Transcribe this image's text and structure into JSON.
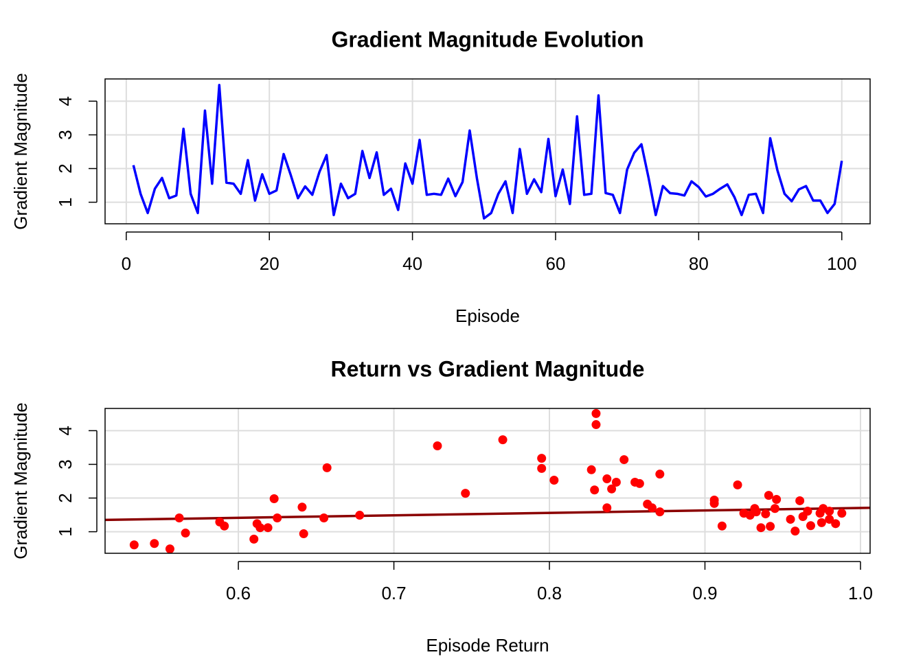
{
  "chart_data": [
    {
      "type": "line",
      "title": "Gradient Magnitude Evolution",
      "x_label": "Episode",
      "y_label": "Gradient Magnitude",
      "color": "#0000ff",
      "grid": true,
      "x": [
        1,
        2,
        3,
        4,
        5,
        6,
        7,
        8,
        9,
        10,
        11,
        12,
        13,
        14,
        15,
        16,
        17,
        18,
        19,
        20,
        21,
        22,
        23,
        24,
        25,
        26,
        27,
        28,
        29,
        30,
        31,
        32,
        33,
        34,
        35,
        36,
        37,
        38,
        39,
        40,
        41,
        42,
        43,
        44,
        45,
        46,
        47,
        48,
        49,
        50,
        51,
        52,
        53,
        54,
        55,
        56,
        57,
        58,
        59,
        60,
        61,
        62,
        63,
        64,
        65,
        66,
        67,
        68,
        69,
        70,
        71,
        72,
        73,
        74,
        75,
        76,
        77,
        78,
        79,
        80,
        81,
        82,
        83,
        84,
        85,
        86,
        87,
        88,
        89,
        90,
        91,
        92,
        93,
        94,
        95,
        96,
        97,
        98,
        99,
        100
      ],
      "values": [
        2.1,
        1.25,
        0.68,
        1.4,
        1.72,
        1.12,
        1.2,
        3.18,
        1.25,
        0.68,
        3.72,
        1.55,
        4.48,
        1.58,
        1.55,
        1.25,
        2.25,
        1.05,
        1.83,
        1.25,
        1.35,
        2.43,
        1.8,
        1.12,
        1.47,
        1.22,
        1.9,
        2.4,
        0.62,
        1.55,
        1.12,
        1.25,
        2.52,
        1.72,
        2.48,
        1.22,
        1.4,
        0.77,
        2.15,
        1.55,
        2.85,
        1.22,
        1.25,
        1.22,
        1.7,
        1.18,
        1.6,
        3.13,
        1.72,
        0.52,
        0.68,
        1.25,
        1.62,
        0.68,
        2.58,
        1.25,
        1.68,
        1.3,
        2.88,
        1.18,
        1.97,
        0.95,
        3.55,
        1.22,
        1.25,
        4.17,
        1.27,
        1.22,
        0.68,
        1.97,
        2.47,
        2.72,
        1.72,
        0.62,
        1.48,
        1.27,
        1.25,
        1.2,
        1.62,
        1.45,
        1.17,
        1.25,
        1.4,
        1.53,
        1.15,
        0.62,
        1.22,
        1.25,
        0.68,
        2.9,
        1.95,
        1.25,
        1.03,
        1.38,
        1.48,
        1.05,
        1.05,
        0.68,
        0.95,
        2.23
      ],
      "xlim": [
        -2.96,
        103.96
      ],
      "xticks": [
        0,
        20,
        40,
        60,
        80,
        100
      ],
      "ylim": [
        0.36,
        4.66
      ],
      "yticks": [
        1,
        2,
        3,
        4
      ]
    },
    {
      "type": "scatter",
      "title": "Return vs Gradient Magnitude",
      "x_label": "Episode Return",
      "y_label": "Gradient Magnitude",
      "color": "#ff0000",
      "grid": true,
      "x": [
        0.533,
        0.546,
        0.556,
        0.562,
        0.566,
        0.588,
        0.591,
        0.61,
        0.612,
        0.614,
        0.619,
        0.623,
        0.625,
        0.641,
        0.642,
        0.655,
        0.657,
        0.678,
        0.728,
        0.746,
        0.77,
        0.795,
        0.795,
        0.803,
        0.827,
        0.829,
        0.83,
        0.83,
        0.837,
        0.837,
        0.84,
        0.843,
        0.848,
        0.855,
        0.858,
        0.863,
        0.866,
        0.871,
        0.871,
        0.906,
        0.906,
        0.911,
        0.921,
        0.925,
        0.929,
        0.932,
        0.933,
        0.936,
        0.939,
        0.941,
        0.942,
        0.945,
        0.946,
        0.955,
        0.958,
        0.961,
        0.963,
        0.966,
        0.968,
        0.974,
        0.975,
        0.976,
        0.98,
        0.98,
        0.984,
        0.988
      ],
      "values": [
        0.61,
        0.65,
        0.49,
        1.41,
        0.96,
        1.29,
        1.17,
        0.78,
        1.24,
        1.12,
        1.12,
        1.98,
        1.41,
        1.73,
        0.94,
        1.41,
        2.9,
        1.49,
        3.55,
        2.14,
        3.73,
        2.88,
        3.18,
        2.53,
        2.84,
        2.24,
        4.18,
        4.51,
        1.71,
        2.57,
        2.27,
        2.47,
        3.14,
        2.47,
        2.43,
        1.82,
        1.71,
        2.71,
        1.59,
        1.94,
        1.84,
        1.17,
        2.39,
        1.55,
        1.49,
        1.69,
        1.59,
        1.12,
        1.53,
        2.08,
        1.16,
        1.69,
        1.96,
        1.37,
        1.02,
        1.92,
        1.45,
        1.61,
        1.18,
        1.55,
        1.27,
        1.69,
        1.61,
        1.37,
        1.24,
        1.55
      ],
      "fit": {
        "color": "#8b0000",
        "x": [
          0.5143,
          1.0062
        ],
        "values": [
          1.35,
          1.71
        ]
      },
      "xlim": [
        0.5143,
        1.0062
      ],
      "xticks": [
        0.6,
        0.7,
        0.8,
        0.9,
        {
          "value": 1,
          "label": "1.0"
        }
      ],
      "ylim": [
        0.36,
        4.66
      ],
      "yticks": [
        1,
        2,
        3,
        4
      ]
    }
  ]
}
